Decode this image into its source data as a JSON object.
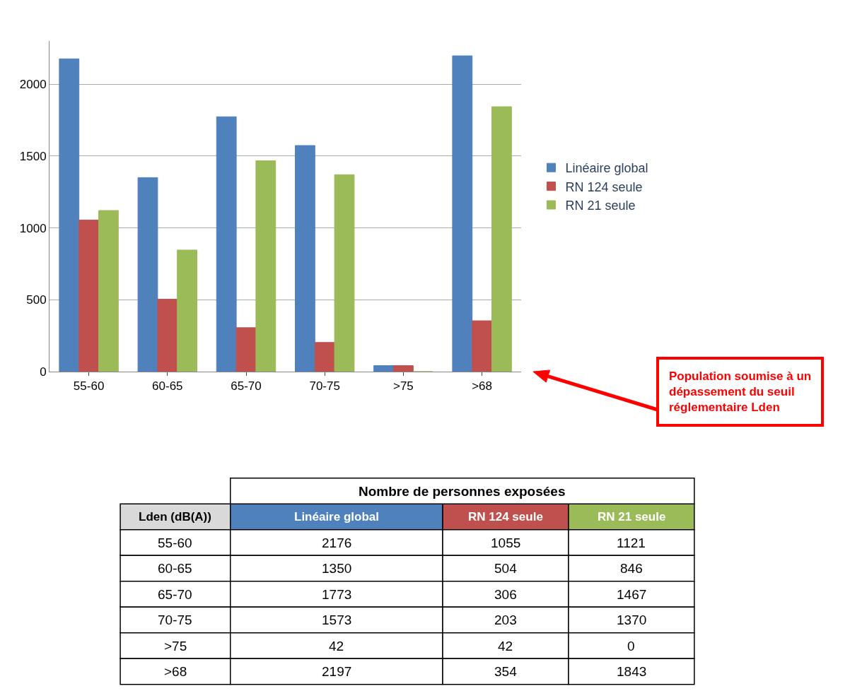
{
  "chart_data": [
    {
      "type": "bar",
      "categories": [
        "55-60",
        "60-65",
        "65-70",
        "70-75",
        ">75",
        ">68"
      ],
      "series": [
        {
          "name": "Linéaire global",
          "color": "#4f81bd",
          "values": [
            2176,
            1350,
            1773,
            1573,
            42,
            2197
          ]
        },
        {
          "name": "RN 124 seule",
          "color": "#c0504d",
          "values": [
            1055,
            504,
            306,
            203,
            42,
            354
          ]
        },
        {
          "name": "RN 21 seule",
          "color": "#9bbb59",
          "values": [
            1121,
            846,
            1467,
            1370,
            0,
            1843
          ]
        }
      ],
      "ylim": [
        0,
        2300
      ],
      "yticks": [
        0,
        500,
        1000,
        1500,
        2000
      ],
      "grid": "y",
      "legend": "right",
      "annotations": [
        "Population soumise à un dépassement du seuil réglementaire Lden"
      ]
    },
    {
      "type": "other",
      "title": "Nombre de personnes exposées",
      "categories": [
        "55-60",
        "60-65",
        "65-70",
        "70-75",
        ">75",
        ">68"
      ],
      "series": [
        {
          "name": "Linéaire global",
          "values": [
            2176,
            1350,
            1773,
            1573,
            42,
            2197
          ]
        },
        {
          "name": "RN 124 seule",
          "values": [
            1055,
            504,
            306,
            203,
            42,
            354
          ]
        },
        {
          "name": "RN 21 seule",
          "values": [
            1121,
            846,
            1467,
            1370,
            0,
            1843
          ]
        }
      ],
      "data_labels": true,
      "annotations": [
        "Lden (dB(A))"
      ]
    }
  ]
}
